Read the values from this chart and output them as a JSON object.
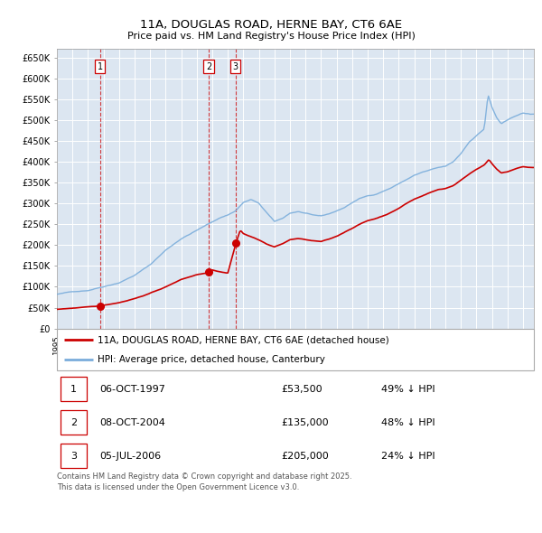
{
  "title": "11A, DOUGLAS ROAD, HERNE BAY, CT6 6AE",
  "subtitle": "Price paid vs. HM Land Registry's House Price Index (HPI)",
  "legend_line1": "11A, DOUGLAS ROAD, HERNE BAY, CT6 6AE (detached house)",
  "legend_line2": "HPI: Average price, detached house, Canterbury",
  "transactions": [
    {
      "num": 1,
      "date": "06-OCT-1997",
      "price": 53500,
      "note": "49% ↓ HPI"
    },
    {
      "num": 2,
      "date": "08-OCT-2004",
      "price": 135000,
      "note": "48% ↓ HPI"
    },
    {
      "num": 3,
      "date": "05-JUL-2006",
      "price": 205000,
      "note": "24% ↓ HPI"
    }
  ],
  "sale_dates": [
    1997.766,
    2004.766,
    2006.505
  ],
  "sale_prices": [
    53500,
    135000,
    205000
  ],
  "footer": "Contains HM Land Registry data © Crown copyright and database right 2025.\nThis data is licensed under the Open Government Licence v3.0.",
  "hpi_color": "#7aaddb",
  "price_color": "#cc0000",
  "plot_bg": "#dce6f1",
  "grid_color": "#ffffff",
  "ylim": [
    0,
    670000
  ],
  "xlim_start": 1995.0,
  "xlim_end": 2025.7,
  "yticks": [
    0,
    50000,
    100000,
    150000,
    200000,
    250000,
    300000,
    350000,
    400000,
    450000,
    500000,
    550000,
    600000,
    650000
  ],
  "ytick_labels": [
    "£0",
    "£50K",
    "£100K",
    "£150K",
    "£200K",
    "£250K",
    "£300K",
    "£350K",
    "£400K",
    "£450K",
    "£500K",
    "£550K",
    "£600K",
    "£650K"
  ],
  "hpi_anchors": [
    [
      1995.0,
      82000
    ],
    [
      1996.0,
      88000
    ],
    [
      1997.0,
      92000
    ],
    [
      1998.0,
      102000
    ],
    [
      1999.0,
      112000
    ],
    [
      2000.0,
      130000
    ],
    [
      2001.0,
      155000
    ],
    [
      2002.0,
      190000
    ],
    [
      2003.0,
      218000
    ],
    [
      2004.0,
      238000
    ],
    [
      2004.5,
      248000
    ],
    [
      2005.0,
      258000
    ],
    [
      2005.5,
      268000
    ],
    [
      2006.0,
      275000
    ],
    [
      2006.5,
      285000
    ],
    [
      2007.0,
      305000
    ],
    [
      2007.5,
      312000
    ],
    [
      2008.0,
      302000
    ],
    [
      2008.5,
      280000
    ],
    [
      2009.0,
      258000
    ],
    [
      2009.5,
      265000
    ],
    [
      2010.0,
      278000
    ],
    [
      2010.5,
      282000
    ],
    [
      2011.0,
      278000
    ],
    [
      2011.5,
      272000
    ],
    [
      2012.0,
      270000
    ],
    [
      2012.5,
      275000
    ],
    [
      2013.0,
      282000
    ],
    [
      2013.5,
      290000
    ],
    [
      2014.0,
      302000
    ],
    [
      2014.5,
      312000
    ],
    [
      2015.0,
      318000
    ],
    [
      2015.5,
      322000
    ],
    [
      2016.0,
      330000
    ],
    [
      2016.5,
      338000
    ],
    [
      2017.0,
      348000
    ],
    [
      2017.5,
      358000
    ],
    [
      2018.0,
      368000
    ],
    [
      2018.5,
      375000
    ],
    [
      2019.0,
      380000
    ],
    [
      2019.5,
      385000
    ],
    [
      2020.0,
      388000
    ],
    [
      2020.5,
      398000
    ],
    [
      2021.0,
      418000
    ],
    [
      2021.5,
      445000
    ],
    [
      2022.0,
      462000
    ],
    [
      2022.5,
      478000
    ],
    [
      2022.75,
      560000
    ],
    [
      2023.0,
      530000
    ],
    [
      2023.3,
      505000
    ],
    [
      2023.6,
      490000
    ],
    [
      2024.0,
      498000
    ],
    [
      2024.5,
      508000
    ],
    [
      2025.0,
      515000
    ],
    [
      2025.5,
      512000
    ]
  ],
  "price_anchors": [
    [
      1995.0,
      46000
    ],
    [
      1996.0,
      49000
    ],
    [
      1997.0,
      51000
    ],
    [
      1997.766,
      53500
    ],
    [
      1998.0,
      55000
    ],
    [
      1999.0,
      62000
    ],
    [
      2000.0,
      72000
    ],
    [
      2001.0,
      85000
    ],
    [
      2002.0,
      100000
    ],
    [
      2003.0,
      118000
    ],
    [
      2004.0,
      130000
    ],
    [
      2004.766,
      135000
    ],
    [
      2005.0,
      142000
    ],
    [
      2005.5,
      138000
    ],
    [
      2006.0,
      135000
    ],
    [
      2006.505,
      205000
    ],
    [
      2006.8,
      238000
    ],
    [
      2007.0,
      230000
    ],
    [
      2007.5,
      222000
    ],
    [
      2008.0,
      215000
    ],
    [
      2008.5,
      205000
    ],
    [
      2009.0,
      198000
    ],
    [
      2009.5,
      205000
    ],
    [
      2010.0,
      215000
    ],
    [
      2010.5,
      218000
    ],
    [
      2011.0,
      215000
    ],
    [
      2011.5,
      212000
    ],
    [
      2012.0,
      210000
    ],
    [
      2012.5,
      215000
    ],
    [
      2013.0,
      222000
    ],
    [
      2013.5,
      232000
    ],
    [
      2014.0,
      242000
    ],
    [
      2014.5,
      252000
    ],
    [
      2015.0,
      260000
    ],
    [
      2015.5,
      265000
    ],
    [
      2016.0,
      272000
    ],
    [
      2016.5,
      280000
    ],
    [
      2017.0,
      290000
    ],
    [
      2017.5,
      302000
    ],
    [
      2018.0,
      312000
    ],
    [
      2018.5,
      320000
    ],
    [
      2019.0,
      328000
    ],
    [
      2019.5,
      335000
    ],
    [
      2020.0,
      338000
    ],
    [
      2020.5,
      345000
    ],
    [
      2021.0,
      358000
    ],
    [
      2021.5,
      372000
    ],
    [
      2022.0,
      385000
    ],
    [
      2022.5,
      395000
    ],
    [
      2022.8,
      408000
    ],
    [
      2023.0,
      398000
    ],
    [
      2023.3,
      385000
    ],
    [
      2023.6,
      375000
    ],
    [
      2024.0,
      378000
    ],
    [
      2024.5,
      385000
    ],
    [
      2025.0,
      390000
    ],
    [
      2025.5,
      388000
    ]
  ]
}
